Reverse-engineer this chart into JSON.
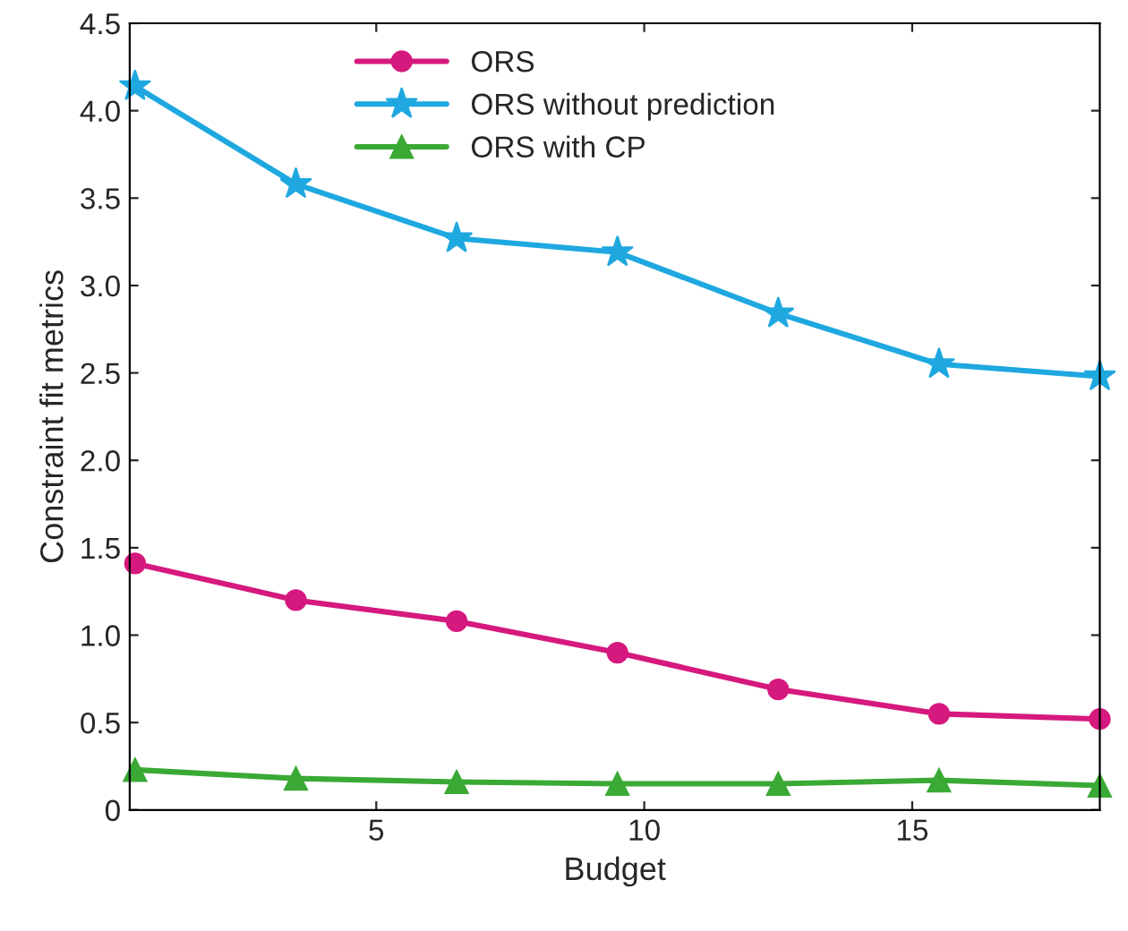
{
  "chart_data": {
    "type": "line",
    "xlabel": "Budget",
    "ylabel": "Constraint fit metrics",
    "x": [
      0.5,
      3.5,
      6.5,
      9.5,
      12.5,
      15.5,
      18.5
    ],
    "series": [
      {
        "name": "ORS",
        "color": "#d6197e",
        "marker": "circle",
        "values": [
          1.41,
          1.2,
          1.08,
          0.9,
          0.69,
          0.55,
          0.52
        ]
      },
      {
        "name": "ORS without prediction",
        "color": "#1fa8e0",
        "marker": "star",
        "values": [
          4.14,
          3.58,
          3.27,
          3.19,
          2.84,
          2.55,
          2.48
        ]
      },
      {
        "name": "ORS with CP",
        "color": "#3aa935",
        "marker": "triangle",
        "values": [
          0.23,
          0.18,
          0.16,
          0.15,
          0.15,
          0.17,
          0.14
        ]
      }
    ],
    "xlim": [
      0.4,
      18.5
    ],
    "xticks": [
      5,
      10,
      15
    ],
    "ylim": [
      0,
      4.5
    ],
    "yticks": [
      0,
      0.5,
      {
        "value": 1,
        "label": "1.0"
      },
      1.5,
      {
        "value": 2,
        "label": "2.0"
      },
      2.5,
      {
        "value": 3,
        "label": "3.0"
      },
      3.5,
      {
        "value": 4,
        "label": "4.0"
      },
      4.5
    ],
    "grid": false,
    "legend": "top",
    "line_style": "solid"
  }
}
